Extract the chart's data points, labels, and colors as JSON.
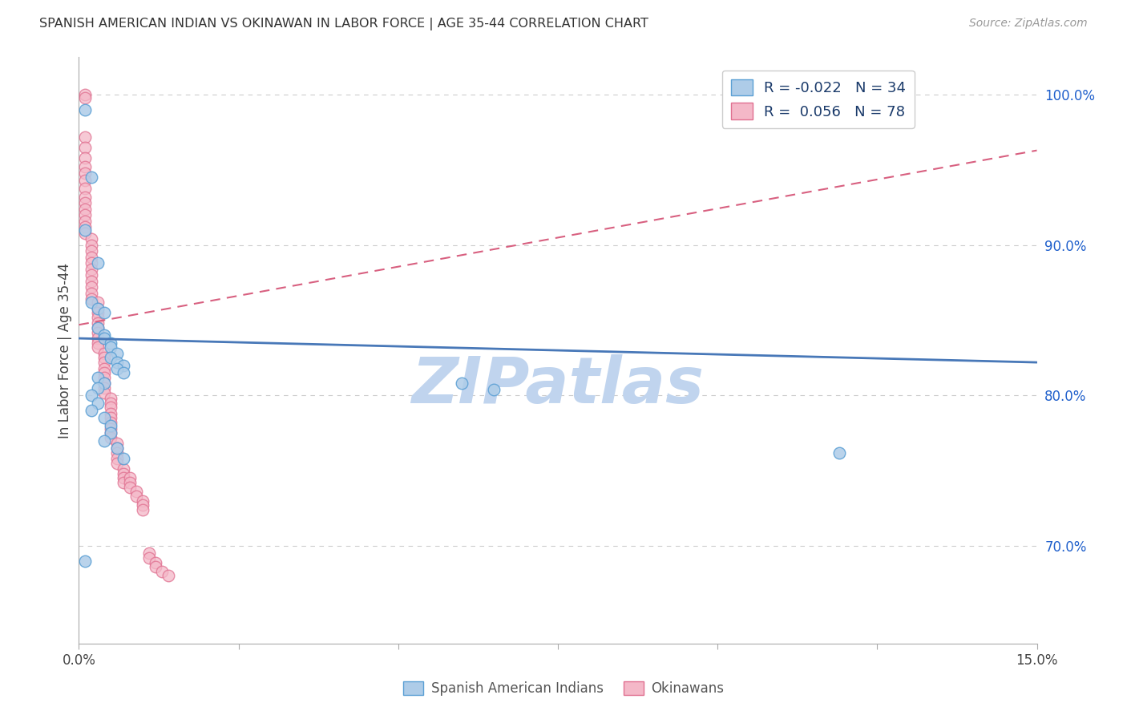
{
  "title": "SPANISH AMERICAN INDIAN VS OKINAWAN IN LABOR FORCE | AGE 35-44 CORRELATION CHART",
  "source": "Source: ZipAtlas.com",
  "ylabel": "In Labor Force | Age 35-44",
  "xlim": [
    0.0,
    0.15
  ],
  "ylim": [
    0.635,
    1.025
  ],
  "xticks": [
    0.0,
    0.025,
    0.05,
    0.075,
    0.1,
    0.125,
    0.15
  ],
  "xticklabels": [
    "0.0%",
    "",
    "",
    "",
    "",
    "",
    "15.0%"
  ],
  "yticks_right": [
    1.0,
    0.9,
    0.8,
    0.7
  ],
  "yticklabels_right": [
    "100.0%",
    "90.0%",
    "80.0%",
    "70.0%"
  ],
  "grid_color": "#cccccc",
  "background_color": "#ffffff",
  "blue_fill_color": "#aecce8",
  "blue_edge_color": "#5a9fd4",
  "pink_fill_color": "#f4b8c8",
  "pink_edge_color": "#e07090",
  "blue_line_color": "#4878b8",
  "pink_line_color": "#d86080",
  "legend_text_color": "#1a3a6a",
  "legend_R_blue": "R = -0.022",
  "legend_N_blue": "N = 34",
  "legend_R_pink": "R =  0.056",
  "legend_N_pink": "N = 78",
  "watermark": "ZIPatlas",
  "watermark_color": "#c0d4ee",
  "blue_trend_x": [
    0.0,
    0.15
  ],
  "blue_trend_y": [
    0.838,
    0.822
  ],
  "pink_trend_x": [
    0.0,
    0.15
  ],
  "pink_trend_y": [
    0.847,
    0.963
  ],
  "blue_scatter_x": [
    0.001,
    0.002,
    0.001,
    0.003,
    0.002,
    0.003,
    0.004,
    0.003,
    0.004,
    0.004,
    0.005,
    0.005,
    0.006,
    0.005,
    0.006,
    0.007,
    0.006,
    0.007,
    0.003,
    0.004,
    0.003,
    0.002,
    0.003,
    0.002,
    0.004,
    0.005,
    0.005,
    0.004,
    0.006,
    0.007,
    0.001,
    0.06,
    0.065,
    0.119
  ],
  "blue_scatter_y": [
    0.99,
    0.945,
    0.91,
    0.888,
    0.862,
    0.858,
    0.855,
    0.845,
    0.84,
    0.838,
    0.835,
    0.832,
    0.828,
    0.825,
    0.822,
    0.82,
    0.818,
    0.815,
    0.812,
    0.808,
    0.805,
    0.8,
    0.795,
    0.79,
    0.785,
    0.78,
    0.775,
    0.77,
    0.765,
    0.758,
    0.69,
    0.808,
    0.804,
    0.762
  ],
  "pink_scatter_x": [
    0.001,
    0.001,
    0.001,
    0.001,
    0.001,
    0.001,
    0.001,
    0.001,
    0.001,
    0.001,
    0.001,
    0.001,
    0.001,
    0.001,
    0.001,
    0.001,
    0.002,
    0.002,
    0.002,
    0.002,
    0.002,
    0.002,
    0.002,
    0.002,
    0.002,
    0.002,
    0.002,
    0.003,
    0.003,
    0.003,
    0.003,
    0.003,
    0.003,
    0.003,
    0.003,
    0.003,
    0.003,
    0.004,
    0.004,
    0.004,
    0.004,
    0.004,
    0.004,
    0.004,
    0.004,
    0.004,
    0.005,
    0.005,
    0.005,
    0.005,
    0.005,
    0.005,
    0.005,
    0.005,
    0.005,
    0.006,
    0.006,
    0.006,
    0.006,
    0.006,
    0.007,
    0.007,
    0.007,
    0.007,
    0.008,
    0.008,
    0.008,
    0.009,
    0.009,
    0.01,
    0.01,
    0.01,
    0.011,
    0.011,
    0.012,
    0.012,
    0.013,
    0.014
  ],
  "pink_scatter_y": [
    1.0,
    0.998,
    0.972,
    0.965,
    0.958,
    0.952,
    0.948,
    0.943,
    0.938,
    0.932,
    0.928,
    0.924,
    0.92,
    0.916,
    0.912,
    0.908,
    0.904,
    0.9,
    0.896,
    0.892,
    0.888,
    0.884,
    0.88,
    0.876,
    0.872,
    0.868,
    0.864,
    0.862,
    0.858,
    0.855,
    0.852,
    0.848,
    0.845,
    0.842,
    0.838,
    0.835,
    0.832,
    0.828,
    0.825,
    0.822,
    0.818,
    0.815,
    0.812,
    0.808,
    0.805,
    0.802,
    0.798,
    0.795,
    0.792,
    0.788,
    0.785,
    0.782,
    0.778,
    0.775,
    0.772,
    0.768,
    0.765,
    0.762,
    0.758,
    0.755,
    0.751,
    0.748,
    0.745,
    0.742,
    0.745,
    0.742,
    0.739,
    0.736,
    0.733,
    0.73,
    0.727,
    0.724,
    0.695,
    0.692,
    0.689,
    0.686,
    0.683,
    0.68
  ]
}
